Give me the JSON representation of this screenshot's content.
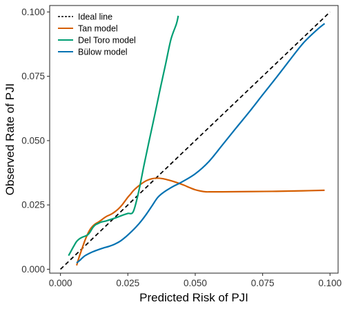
{
  "chart_data": {
    "type": "line",
    "title": "",
    "xlabel": "Predicted Risk of PJI",
    "ylabel": "Observed Rate of PJI",
    "xlim": [
      -0.004,
      0.103
    ],
    "ylim": [
      -0.0015,
      0.1025
    ],
    "x_ticks": [
      0.0,
      0.025,
      0.05,
      0.075,
      0.1
    ],
    "x_tick_labels": [
      "0.000",
      "0.025",
      "0.050",
      "0.075",
      "0.100"
    ],
    "y_ticks": [
      0.0,
      0.025,
      0.05,
      0.075,
      0.1
    ],
    "y_tick_labels": [
      "0.000",
      "0.025",
      "0.050",
      "0.075",
      "0.100"
    ],
    "grid": false,
    "legend_position": "top-left",
    "series": [
      {
        "name": "Ideal line",
        "color": "#000000",
        "dash": "dashed",
        "x": [
          0.0,
          0.1
        ],
        "y": [
          0.0,
          0.1
        ]
      },
      {
        "name": "Tan model",
        "color": "#D55E00",
        "dash": "solid",
        "x": [
          0.006,
          0.007,
          0.008,
          0.009,
          0.01,
          0.011,
          0.012,
          0.013,
          0.014,
          0.015,
          0.016,
          0.017,
          0.018,
          0.019,
          0.02,
          0.021,
          0.022,
          0.023,
          0.024,
          0.025,
          0.026,
          0.027,
          0.028,
          0.03,
          0.032,
          0.034,
          0.036,
          0.038,
          0.04,
          0.042,
          0.044,
          0.046,
          0.048,
          0.05,
          0.052,
          0.054,
          0.056,
          0.06,
          0.07,
          0.08,
          0.09,
          0.098
        ],
        "y": [
          0.0015,
          0.005,
          0.008,
          0.011,
          0.0135,
          0.0155,
          0.0168,
          0.0177,
          0.0183,
          0.019,
          0.0198,
          0.0205,
          0.021,
          0.0215,
          0.0222,
          0.023,
          0.024,
          0.0252,
          0.0266,
          0.028,
          0.0292,
          0.0305,
          0.0315,
          0.0332,
          0.0345,
          0.0352,
          0.0354,
          0.0352,
          0.0347,
          0.0341,
          0.0334,
          0.0326,
          0.0317,
          0.0309,
          0.0304,
          0.0301,
          0.0301,
          0.0301,
          0.0302,
          0.0303,
          0.0305,
          0.0307
        ]
      },
      {
        "name": "Del Toro model",
        "color": "#009E73",
        "dash": "solid",
        "x": [
          0.003,
          0.004,
          0.005,
          0.006,
          0.007,
          0.008,
          0.01,
          0.011,
          0.012,
          0.013,
          0.014,
          0.015,
          0.017,
          0.019,
          0.021,
          0.023,
          0.025,
          0.027,
          0.029,
          0.031,
          0.033,
          0.035,
          0.037,
          0.039,
          0.041,
          0.043,
          0.0437
        ],
        "y": [
          0.0053,
          0.0072,
          0.0091,
          0.0108,
          0.0118,
          0.0124,
          0.0133,
          0.0145,
          0.0162,
          0.0173,
          0.0178,
          0.0183,
          0.0188,
          0.0195,
          0.0202,
          0.021,
          0.0217,
          0.0224,
          0.0301,
          0.0405,
          0.0504,
          0.0601,
          0.0701,
          0.0797,
          0.0894,
          0.0953,
          0.0985
        ]
      },
      {
        "name": "Bülow model",
        "color": "#0072B2",
        "dash": "solid",
        "x": [
          0.006,
          0.007,
          0.008,
          0.009,
          0.01,
          0.012,
          0.014,
          0.016,
          0.018,
          0.02,
          0.022,
          0.024,
          0.026,
          0.028,
          0.03,
          0.032,
          0.034,
          0.036,
          0.038,
          0.04,
          0.042,
          0.045,
          0.05,
          0.055,
          0.06,
          0.065,
          0.07,
          0.075,
          0.08,
          0.085,
          0.09,
          0.095,
          0.098
        ],
        "y": [
          0.0025,
          0.0033,
          0.0043,
          0.0052,
          0.0058,
          0.0068,
          0.0076,
          0.0083,
          0.0089,
          0.0097,
          0.0108,
          0.0124,
          0.0143,
          0.0164,
          0.0188,
          0.0216,
          0.0247,
          0.0278,
          0.0297,
          0.0311,
          0.0323,
          0.0339,
          0.0371,
          0.0418,
          0.0482,
          0.0547,
          0.0611,
          0.0678,
          0.0744,
          0.0812,
          0.0878,
          0.0929,
          0.0955
        ]
      }
    ]
  }
}
